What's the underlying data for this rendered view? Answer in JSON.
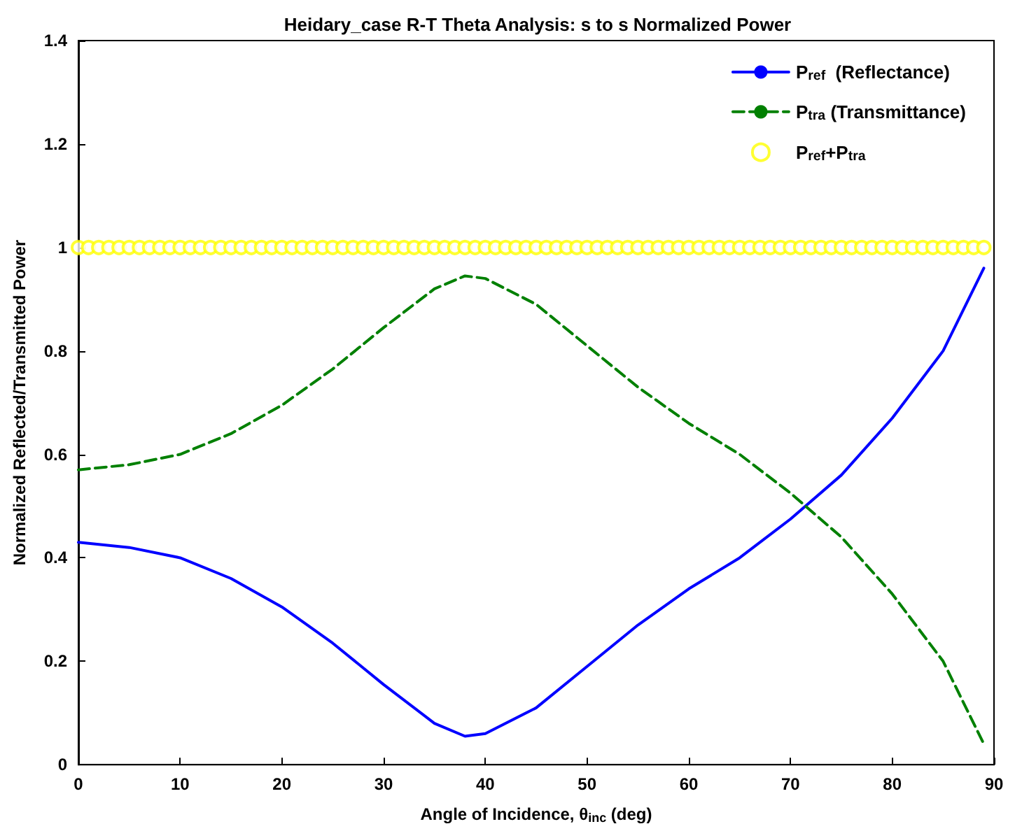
{
  "chart_data": {
    "type": "line",
    "title": "Heidary_case R-T Theta Analysis: s to s Normalized Power",
    "xlabel": "Angle of Incidence, θ$_{inc}$ (deg)",
    "ylabel": "Normalized Reflected/Transmitted Power",
    "xlim": [
      0,
      90
    ],
    "xticks": [
      0,
      10,
      20,
      30,
      40,
      50,
      60,
      70,
      80,
      90
    ],
    "ylim": [
      0,
      1.4
    ],
    "yticks": [
      0,
      0.2,
      0.4,
      0.6,
      0.8,
      1,
      1.2,
      1.4
    ],
    "grid": false,
    "legend": "top right",
    "series": [
      {
        "name": "P$_{ref}$  (Reflectance)",
        "color": "#0000ff",
        "line_style": "solid",
        "marker": "none",
        "x": [
          0,
          5,
          10,
          15,
          20,
          25,
          30,
          35,
          38,
          40,
          45,
          50,
          55,
          60,
          65,
          70,
          75,
          80,
          85,
          89
        ],
        "values": [
          0.43,
          0.42,
          0.4,
          0.36,
          0.305,
          0.235,
          0.155,
          0.08,
          0.055,
          0.06,
          0.11,
          0.19,
          0.27,
          0.34,
          0.4,
          0.475,
          0.56,
          0.67,
          0.8,
          0.96
        ]
      },
      {
        "name": "P$_{tra}$ (Transmittance)",
        "color": "#008000",
        "line_style": "dashed",
        "marker": "none",
        "x": [
          0,
          5,
          10,
          15,
          20,
          25,
          30,
          35,
          38,
          40,
          45,
          50,
          55,
          60,
          65,
          70,
          75,
          80,
          85,
          89
        ],
        "values": [
          0.57,
          0.58,
          0.6,
          0.64,
          0.695,
          0.765,
          0.845,
          0.92,
          0.945,
          0.94,
          0.89,
          0.81,
          0.73,
          0.66,
          0.6,
          0.525,
          0.44,
          0.33,
          0.2,
          0.04
        ]
      },
      {
        "name": "P$_{ref}$+P$_{tra}$",
        "type": "scatter",
        "color": "#ffff00",
        "marker": "circle",
        "x": [
          0,
          1,
          2,
          3,
          4,
          5,
          6,
          7,
          8,
          9,
          10,
          11,
          12,
          13,
          14,
          15,
          16,
          17,
          18,
          19,
          20,
          21,
          22,
          23,
          24,
          25,
          26,
          27,
          28,
          29,
          30,
          31,
          32,
          33,
          34,
          35,
          36,
          37,
          38,
          39,
          40,
          41,
          42,
          43,
          44,
          45,
          46,
          47,
          48,
          49,
          50,
          51,
          52,
          53,
          54,
          55,
          56,
          57,
          58,
          59,
          60,
          61,
          62,
          63,
          64,
          65,
          66,
          67,
          68,
          69,
          70,
          71,
          72,
          73,
          74,
          75,
          76,
          77,
          78,
          79,
          80,
          81,
          82,
          83,
          84,
          85,
          86,
          87,
          88,
          89
        ],
        "values": [
          1,
          1,
          1,
          1,
          1,
          1,
          1,
          1,
          1,
          1,
          1,
          1,
          1,
          1,
          1,
          1,
          1,
          1,
          1,
          1,
          1,
          1,
          1,
          1,
          1,
          1,
          1,
          1,
          1,
          1,
          1,
          1,
          1,
          1,
          1,
          1,
          1,
          1,
          1,
          1,
          1,
          1,
          1,
          1,
          1,
          1,
          1,
          1,
          1,
          1,
          1,
          1,
          1,
          1,
          1,
          1,
          1,
          1,
          1,
          1,
          1,
          1,
          1,
          1,
          1,
          1,
          1,
          1,
          1,
          1,
          1,
          1,
          1,
          1,
          1,
          1,
          1,
          1,
          1,
          1,
          1,
          1,
          1,
          1,
          1,
          1,
          1,
          1,
          1,
          1
        ]
      }
    ]
  }
}
